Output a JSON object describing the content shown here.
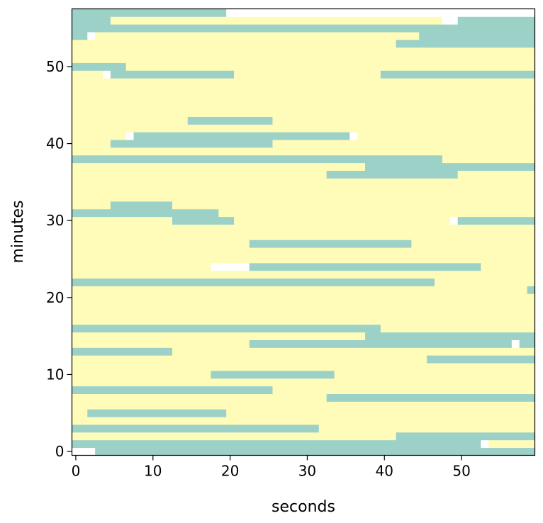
{
  "chart_data": {
    "type": "heatmap",
    "title": "",
    "xlabel": "seconds",
    "ylabel": "minutes",
    "xlim": [
      -0.5,
      59.5
    ],
    "ylim": [
      57.5,
      -0.5
    ],
    "x_ticks": [
      0,
      10,
      20,
      30,
      40,
      50
    ],
    "y_ticks": [
      0,
      10,
      20,
      30,
      40,
      50
    ],
    "legend": {
      "colors": {
        "busy": "#9cd1c8",
        "idle": "#fffbb9",
        "none": "#ffffff"
      },
      "values": {
        "busy": 1,
        "idle": 0,
        "none": null
      }
    },
    "rows": [
      {
        "minute": 0,
        "segments": [
          [
            0,
            2,
            "none"
          ],
          [
            3,
            59,
            "busy"
          ]
        ]
      },
      {
        "minute": 1,
        "segments": [
          [
            0,
            52,
            "busy"
          ],
          [
            53,
            53,
            "none"
          ],
          [
            54,
            59,
            "idle"
          ]
        ]
      },
      {
        "minute": 2,
        "segments": [
          [
            0,
            41,
            "idle"
          ],
          [
            42,
            59,
            "busy"
          ]
        ]
      },
      {
        "minute": 3,
        "segments": [
          [
            0,
            31,
            "busy"
          ],
          [
            32,
            59,
            "idle"
          ]
        ]
      },
      {
        "minute": 4,
        "segments": [
          [
            0,
            59,
            "idle"
          ]
        ]
      },
      {
        "minute": 5,
        "segments": [
          [
            0,
            1,
            "idle"
          ],
          [
            2,
            19,
            "busy"
          ],
          [
            20,
            59,
            "idle"
          ]
        ]
      },
      {
        "minute": 6,
        "segments": [
          [
            0,
            59,
            "idle"
          ]
        ]
      },
      {
        "minute": 7,
        "segments": [
          [
            0,
            32,
            "idle"
          ],
          [
            33,
            59,
            "busy"
          ]
        ]
      },
      {
        "minute": 8,
        "segments": [
          [
            0,
            25,
            "busy"
          ],
          [
            26,
            59,
            "idle"
          ]
        ]
      },
      {
        "minute": 9,
        "segments": [
          [
            0,
            59,
            "idle"
          ]
        ]
      },
      {
        "minute": 10,
        "segments": [
          [
            0,
            17,
            "idle"
          ],
          [
            18,
            33,
            "busy"
          ],
          [
            34,
            59,
            "idle"
          ]
        ]
      },
      {
        "minute": 11,
        "segments": [
          [
            0,
            59,
            "idle"
          ]
        ]
      },
      {
        "minute": 12,
        "segments": [
          [
            0,
            45,
            "idle"
          ],
          [
            46,
            59,
            "busy"
          ]
        ]
      },
      {
        "minute": 13,
        "segments": [
          [
            0,
            12,
            "busy"
          ],
          [
            13,
            59,
            "idle"
          ]
        ]
      },
      {
        "minute": 14,
        "segments": [
          [
            0,
            22,
            "idle"
          ],
          [
            23,
            56,
            "busy"
          ],
          [
            57,
            57,
            "none"
          ],
          [
            58,
            59,
            "busy"
          ]
        ]
      },
      {
        "minute": 15,
        "segments": [
          [
            0,
            37,
            "idle"
          ],
          [
            38,
            59,
            "busy"
          ]
        ]
      },
      {
        "minute": 16,
        "segments": [
          [
            0,
            39,
            "busy"
          ],
          [
            40,
            59,
            "idle"
          ]
        ]
      },
      {
        "minute": 17,
        "segments": [
          [
            0,
            59,
            "idle"
          ]
        ]
      },
      {
        "minute": 18,
        "segments": [
          [
            0,
            59,
            "idle"
          ]
        ]
      },
      {
        "minute": 19,
        "segments": [
          [
            0,
            59,
            "idle"
          ]
        ]
      },
      {
        "minute": 20,
        "segments": [
          [
            0,
            59,
            "idle"
          ]
        ]
      },
      {
        "minute": 21,
        "segments": [
          [
            0,
            58,
            "idle"
          ],
          [
            59,
            59,
            "busy"
          ]
        ]
      },
      {
        "minute": 22,
        "segments": [
          [
            0,
            46,
            "busy"
          ],
          [
            47,
            59,
            "idle"
          ]
        ]
      },
      {
        "minute": 23,
        "segments": [
          [
            0,
            59,
            "idle"
          ]
        ]
      },
      {
        "minute": 24,
        "segments": [
          [
            0,
            17,
            "idle"
          ],
          [
            18,
            22,
            "none"
          ],
          [
            23,
            52,
            "busy"
          ],
          [
            53,
            59,
            "idle"
          ]
        ]
      },
      {
        "minute": 25,
        "segments": [
          [
            0,
            59,
            "idle"
          ]
        ]
      },
      {
        "minute": 26,
        "segments": [
          [
            0,
            59,
            "idle"
          ]
        ]
      },
      {
        "minute": 27,
        "segments": [
          [
            0,
            22,
            "idle"
          ],
          [
            23,
            43,
            "busy"
          ],
          [
            44,
            59,
            "idle"
          ]
        ]
      },
      {
        "minute": 28,
        "segments": [
          [
            0,
            59,
            "idle"
          ]
        ]
      },
      {
        "minute": 29,
        "segments": [
          [
            0,
            59,
            "idle"
          ]
        ]
      },
      {
        "minute": 30,
        "segments": [
          [
            0,
            12,
            "idle"
          ],
          [
            13,
            20,
            "busy"
          ],
          [
            21,
            48,
            "idle"
          ],
          [
            49,
            49,
            "none"
          ],
          [
            50,
            59,
            "busy"
          ]
        ]
      },
      {
        "minute": 31,
        "segments": [
          [
            0,
            18,
            "busy"
          ],
          [
            19,
            59,
            "idle"
          ]
        ]
      },
      {
        "minute": 32,
        "segments": [
          [
            0,
            4,
            "idle"
          ],
          [
            5,
            12,
            "busy"
          ],
          [
            13,
            59,
            "idle"
          ]
        ]
      },
      {
        "minute": 33,
        "segments": [
          [
            0,
            59,
            "idle"
          ]
        ]
      },
      {
        "minute": 34,
        "segments": [
          [
            0,
            59,
            "idle"
          ]
        ]
      },
      {
        "minute": 35,
        "segments": [
          [
            0,
            59,
            "idle"
          ]
        ]
      },
      {
        "minute": 36,
        "segments": [
          [
            0,
            32,
            "idle"
          ],
          [
            33,
            49,
            "busy"
          ],
          [
            50,
            59,
            "idle"
          ]
        ]
      },
      {
        "minute": 37,
        "segments": [
          [
            0,
            37,
            "idle"
          ],
          [
            38,
            59,
            "busy"
          ]
        ]
      },
      {
        "minute": 38,
        "segments": [
          [
            0,
            47,
            "busy"
          ],
          [
            48,
            59,
            "idle"
          ]
        ]
      },
      {
        "minute": 39,
        "segments": [
          [
            0,
            59,
            "idle"
          ]
        ]
      },
      {
        "minute": 40,
        "segments": [
          [
            0,
            4,
            "idle"
          ],
          [
            5,
            25,
            "busy"
          ],
          [
            26,
            59,
            "idle"
          ]
        ]
      },
      {
        "minute": 41,
        "segments": [
          [
            0,
            6,
            "idle"
          ],
          [
            7,
            7,
            "none"
          ],
          [
            8,
            35,
            "busy"
          ],
          [
            36,
            36,
            "none"
          ],
          [
            37,
            59,
            "idle"
          ]
        ]
      },
      {
        "minute": 42,
        "segments": [
          [
            0,
            59,
            "idle"
          ]
        ]
      },
      {
        "minute": 43,
        "segments": [
          [
            0,
            14,
            "idle"
          ],
          [
            15,
            25,
            "busy"
          ],
          [
            26,
            59,
            "idle"
          ]
        ]
      },
      {
        "minute": 44,
        "segments": [
          [
            0,
            59,
            "idle"
          ]
        ]
      },
      {
        "minute": 45,
        "segments": [
          [
            0,
            59,
            "idle"
          ]
        ]
      },
      {
        "minute": 46,
        "segments": [
          [
            0,
            59,
            "idle"
          ]
        ]
      },
      {
        "minute": 47,
        "segments": [
          [
            0,
            59,
            "idle"
          ]
        ]
      },
      {
        "minute": 48,
        "segments": [
          [
            0,
            59,
            "idle"
          ]
        ]
      },
      {
        "minute": 49,
        "segments": [
          [
            0,
            3,
            "idle"
          ],
          [
            4,
            4,
            "none"
          ],
          [
            5,
            20,
            "busy"
          ],
          [
            21,
            39,
            "idle"
          ],
          [
            40,
            59,
            "busy"
          ]
        ]
      },
      {
        "minute": 50,
        "segments": [
          [
            0,
            6,
            "busy"
          ],
          [
            7,
            59,
            "idle"
          ]
        ]
      },
      {
        "minute": 51,
        "segments": [
          [
            0,
            59,
            "idle"
          ]
        ]
      },
      {
        "minute": 52,
        "segments": [
          [
            0,
            59,
            "idle"
          ]
        ]
      },
      {
        "minute": 53,
        "segments": [
          [
            0,
            41,
            "idle"
          ],
          [
            42,
            59,
            "busy"
          ]
        ]
      },
      {
        "minute": 54,
        "segments": [
          [
            0,
            1,
            "busy"
          ],
          [
            2,
            2,
            "none"
          ],
          [
            3,
            44,
            "idle"
          ],
          [
            45,
            59,
            "busy"
          ]
        ]
      },
      {
        "minute": 55,
        "segments": [
          [
            0,
            59,
            "busy"
          ]
        ]
      },
      {
        "minute": 56,
        "segments": [
          [
            0,
            4,
            "busy"
          ],
          [
            5,
            47,
            "idle"
          ],
          [
            48,
            49,
            "none"
          ],
          [
            50,
            59,
            "busy"
          ]
        ]
      },
      {
        "minute": 57,
        "segments": [
          [
            0,
            19,
            "busy"
          ],
          [
            20,
            59,
            "none"
          ]
        ]
      }
    ]
  }
}
